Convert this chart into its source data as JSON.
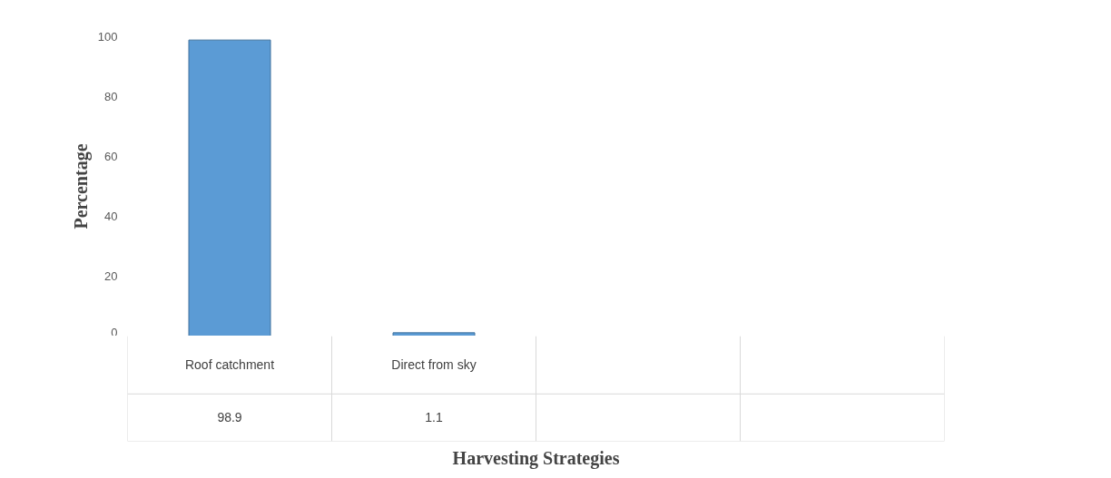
{
  "chart_data": {
    "type": "bar",
    "xlabel": "Harvesting Strategies",
    "ylabel": "Percentage",
    "categories": [
      "Roof catchment",
      "Direct from sky",
      null,
      null
    ],
    "values": [
      98.9,
      1.1,
      null,
      null
    ],
    "color": "#5b9bd5",
    "ylim": [
      0,
      100
    ],
    "yticks": [
      0,
      20,
      40,
      60,
      80,
      100
    ],
    "data_labels": true
  }
}
